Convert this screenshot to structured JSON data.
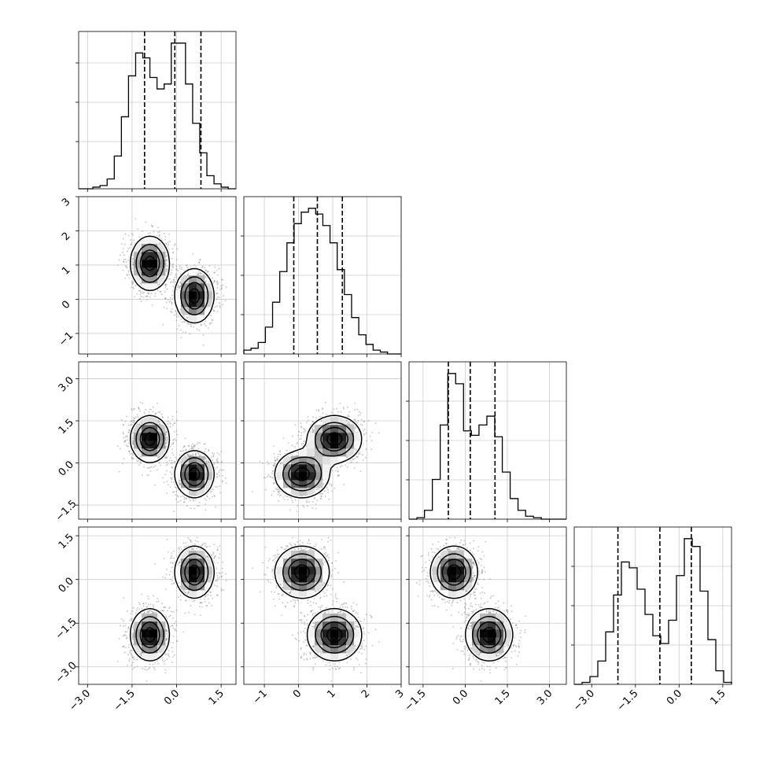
{
  "chart_data": {
    "type": "corner",
    "grid": true,
    "parameters": 4,
    "ranges": [
      [
        -3.3,
        2.0
      ],
      [
        -1.6,
        3.0
      ],
      [
        -2.0,
        3.6
      ],
      [
        -3.6,
        1.8
      ]
    ],
    "ticks": [
      {
        "values": [
          -3.0,
          -1.5,
          0.0,
          1.5
        ],
        "labels": [
          "−3.0",
          "−1.5",
          "0.0",
          "1.5"
        ]
      },
      {
        "values": [
          -1,
          0,
          1,
          2,
          3
        ],
        "labels": [
          "−1",
          "0",
          "1",
          "2",
          "3"
        ]
      },
      {
        "values": [
          -1.5,
          0.0,
          1.5,
          3.0
        ],
        "labels": [
          "−1.5",
          "0.0",
          "1.5",
          "3.0"
        ]
      },
      {
        "values": [
          -3.0,
          -1.5,
          0.0,
          1.5
        ],
        "labels": [
          "−3.0",
          "−1.5",
          "0.0",
          "1.5"
        ]
      }
    ],
    "quantiles": [
      [
        -1.08,
        -0.06,
        0.82
      ],
      [
        -0.14,
        0.55,
        1.28
      ],
      [
        -0.6,
        0.18,
        1.06
      ],
      [
        -2.1,
        -0.66,
        0.42
      ]
    ],
    "histograms": [
      {
        "param": 0,
        "bin_edges": [
          -3.3,
          -3.06,
          -2.82,
          -2.58,
          -2.34,
          -2.1,
          -1.86,
          -1.62,
          -1.38,
          -1.14,
          -0.9,
          -0.66,
          -0.42,
          -0.18,
          0.06,
          0.3,
          0.54,
          0.78,
          1.02,
          1.26,
          1.5,
          1.74,
          2.0
        ],
        "counts": [
          0,
          0,
          1,
          2,
          6,
          20,
          44,
          69,
          83,
          80,
          68,
          61,
          64,
          89,
          89,
          64,
          40,
          22,
          8,
          3,
          1,
          0
        ]
      },
      {
        "param": 1,
        "bin_edges": [
          -1.6,
          -1.39,
          -1.18,
          -0.97,
          -0.76,
          -0.55,
          -0.34,
          -0.13,
          0.08,
          0.29,
          0.5,
          0.71,
          0.92,
          1.13,
          1.34,
          1.55,
          1.76,
          1.97,
          2.18,
          2.39,
          2.6,
          2.81,
          3.0
        ],
        "counts": [
          2,
          3,
          6,
          14,
          27,
          43,
          58,
          68,
          74,
          76,
          73,
          67,
          58,
          44,
          31,
          19,
          10,
          5,
          2,
          1,
          0,
          0
        ]
      },
      {
        "param": 2,
        "bin_edges": [
          -2.0,
          -1.72,
          -1.45,
          -1.17,
          -0.89,
          -0.62,
          -0.34,
          -0.06,
          0.22,
          0.49,
          0.77,
          1.05,
          1.32,
          1.6,
          1.88,
          2.15,
          2.43,
          2.71,
          2.98,
          3.26,
          3.6
        ],
        "counts": [
          0,
          1,
          6,
          27,
          64,
          99,
          92,
          60,
          57,
          64,
          70,
          56,
          32,
          14,
          6,
          2,
          1,
          0,
          0,
          0
        ]
      },
      {
        "param": 3,
        "bin_edges": [
          -3.6,
          -3.33,
          -3.06,
          -2.79,
          -2.52,
          -2.25,
          -1.98,
          -1.71,
          -1.44,
          -1.17,
          -0.9,
          -0.63,
          -0.36,
          -0.09,
          0.18,
          0.45,
          0.72,
          0.99,
          1.26,
          1.53,
          1.8
        ],
        "counts": [
          0,
          1,
          4,
          12,
          27,
          46,
          63,
          60,
          49,
          36,
          25,
          21,
          33,
          56,
          75,
          71,
          48,
          23,
          7,
          1
        ]
      }
    ],
    "components": [
      {
        "weight": 0.5,
        "mean": [
          -0.9,
          1.05,
          0.85,
          -1.9
        ],
        "sd": [
          0.33,
          0.4,
          0.42,
          0.45
        ]
      },
      {
        "weight": 0.5,
        "mean": [
          0.6,
          0.1,
          -0.4,
          0.25
        ],
        "sd": [
          0.33,
          0.4,
          0.42,
          0.45
        ]
      }
    ]
  }
}
